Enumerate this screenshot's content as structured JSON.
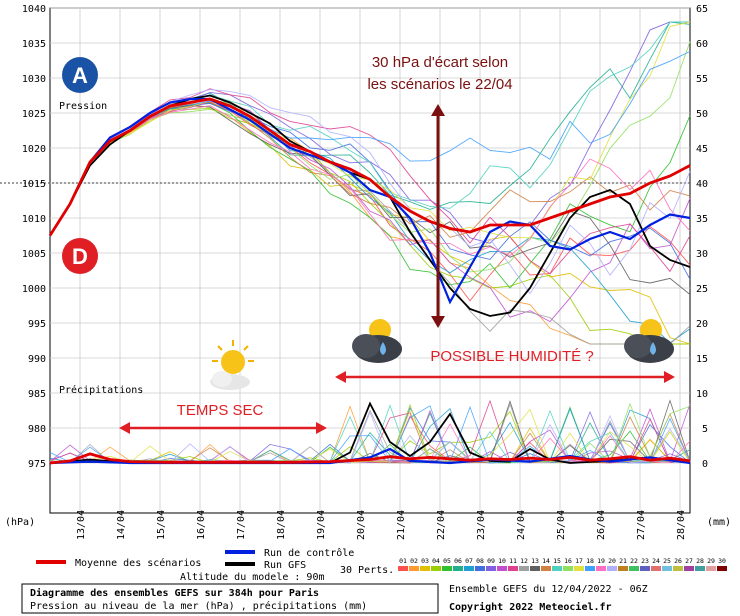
{
  "chart_data": {
    "type": "line",
    "units": {
      "left": "(hPa)",
      "right": "(mm)"
    },
    "left_axis": {
      "ylim": [
        975,
        1040
      ],
      "ticks": [
        975,
        980,
        985,
        990,
        995,
        1000,
        1005,
        1010,
        1015,
        1020,
        1025,
        1030,
        1035,
        1040
      ]
    },
    "right_axis": {
      "ylim": [
        0,
        65
      ],
      "ticks": [
        0,
        5,
        10,
        15,
        20,
        25,
        30,
        35,
        40,
        45,
        50,
        55,
        60,
        65
      ]
    },
    "x_dates": [
      "13/04",
      "14/04",
      "15/04",
      "16/04",
      "17/04",
      "18/04",
      "19/04",
      "20/04",
      "21/04",
      "22/04",
      "23/04",
      "24/04",
      "25/04",
      "26/04",
      "27/04",
      "28/04"
    ],
    "x_range_days": [
      12.25,
      28.25
    ],
    "reference_line_hpa": 1015,
    "labels": {
      "pression": "Pression",
      "precipitations": "Précipitations"
    },
    "series_mean": {
      "name": "Moyenne des scénarios",
      "color": "#e00000",
      "pressure": [
        [
          12.25,
          1007.5
        ],
        [
          12.75,
          1012
        ],
        [
          13.25,
          1018
        ],
        [
          13.75,
          1021
        ],
        [
          14.25,
          1022.5
        ],
        [
          14.75,
          1024.5
        ],
        [
          15.25,
          1026
        ],
        [
          15.75,
          1026.5
        ],
        [
          16.25,
          1027
        ],
        [
          16.75,
          1026
        ],
        [
          17.25,
          1024.5
        ],
        [
          17.75,
          1022.5
        ],
        [
          18.25,
          1020.5
        ],
        [
          18.75,
          1019.5
        ],
        [
          19.25,
          1018
        ],
        [
          19.75,
          1017
        ],
        [
          20.25,
          1015.5
        ],
        [
          20.75,
          1013
        ],
        [
          21.25,
          1011
        ],
        [
          21.75,
          1009.5
        ],
        [
          22.25,
          1008.5
        ],
        [
          22.75,
          1008
        ],
        [
          23.25,
          1009
        ],
        [
          23.75,
          1009
        ],
        [
          24.25,
          1009
        ],
        [
          24.75,
          1010
        ],
        [
          25.25,
          1011
        ],
        [
          25.75,
          1012
        ],
        [
          26.25,
          1013
        ],
        [
          26.75,
          1013.5
        ],
        [
          27.25,
          1015
        ],
        [
          27.75,
          1016
        ],
        [
          28.25,
          1017.5
        ]
      ],
      "precip": [
        [
          12.25,
          0
        ],
        [
          12.75,
          0.3
        ],
        [
          13.25,
          1.3
        ],
        [
          13.75,
          0.5
        ],
        [
          14.25,
          0.2
        ],
        [
          15.25,
          0.1
        ],
        [
          16.25,
          0.1
        ],
        [
          17.25,
          0.1
        ],
        [
          18.25,
          0.1
        ],
        [
          19.25,
          0.2
        ],
        [
          20.25,
          0.5
        ],
        [
          20.75,
          0.9
        ],
        [
          21.25,
          0.6
        ],
        [
          21.75,
          0.8
        ],
        [
          22.25,
          0.6
        ],
        [
          22.75,
          0.4
        ],
        [
          23.25,
          0.6
        ],
        [
          23.75,
          0.5
        ],
        [
          24.25,
          0.7
        ],
        [
          24.75,
          0.5
        ],
        [
          25.25,
          0.8
        ],
        [
          25.75,
          0.4
        ],
        [
          26.25,
          0.6
        ],
        [
          26.75,
          0.9
        ],
        [
          27.25,
          0.4
        ],
        [
          27.75,
          0.7
        ],
        [
          28.25,
          0.3
        ]
      ]
    },
    "series_control": {
      "name": "Run de contrôle",
      "color": "#0020e0",
      "pressure": [
        [
          12.25,
          1007.5
        ],
        [
          12.75,
          1012
        ],
        [
          13.25,
          1018
        ],
        [
          13.75,
          1021.5
        ],
        [
          14.25,
          1023
        ],
        [
          14.75,
          1025
        ],
        [
          15.25,
          1026.5
        ],
        [
          15.75,
          1027
        ],
        [
          16.25,
          1027
        ],
        [
          16.75,
          1025.5
        ],
        [
          17.25,
          1024
        ],
        [
          17.75,
          1022
        ],
        [
          18.25,
          1020
        ],
        [
          18.75,
          1019
        ],
        [
          19.25,
          1018
        ],
        [
          19.75,
          1016.5
        ],
        [
          20.25,
          1014
        ],
        [
          20.75,
          1013
        ],
        [
          21.25,
          1010
        ],
        [
          21.75,
          1005
        ],
        [
          22.25,
          998
        ],
        [
          22.75,
          1003
        ],
        [
          23.25,
          1008
        ],
        [
          23.75,
          1009.5
        ],
        [
          24.25,
          1009
        ],
        [
          24.75,
          1006
        ],
        [
          25.25,
          1005.5
        ],
        [
          25.75,
          1007
        ],
        [
          26.25,
          1008
        ],
        [
          26.75,
          1007
        ],
        [
          27.25,
          1009
        ],
        [
          27.75,
          1010.5
        ],
        [
          28.25,
          1010
        ]
      ],
      "precip": [
        [
          12.25,
          0
        ],
        [
          13.25,
          0.2
        ],
        [
          14.25,
          0
        ],
        [
          19.25,
          0
        ],
        [
          20.25,
          0.8
        ],
        [
          20.75,
          2
        ],
        [
          21.25,
          0.3
        ],
        [
          22.25,
          0
        ],
        [
          23.25,
          0.5
        ],
        [
          24.25,
          0.2
        ],
        [
          25.25,
          1
        ],
        [
          25.75,
          0.5
        ],
        [
          26.25,
          0.2
        ],
        [
          27.25,
          0.8
        ],
        [
          28.25,
          0
        ]
      ]
    },
    "series_gfs": {
      "name": "Run GFS",
      "color": "#000000",
      "pressure": [
        [
          12.25,
          1007.5
        ],
        [
          12.75,
          1012
        ],
        [
          13.25,
          1017.5
        ],
        [
          13.75,
          1020.5
        ],
        [
          14.25,
          1022.5
        ],
        [
          14.75,
          1024.5
        ],
        [
          15.25,
          1026
        ],
        [
          15.75,
          1027
        ],
        [
          16.25,
          1027.5
        ],
        [
          16.75,
          1026.5
        ],
        [
          17.25,
          1025
        ],
        [
          17.75,
          1023.5
        ],
        [
          18.25,
          1021
        ],
        [
          18.75,
          1019.5
        ],
        [
          19.25,
          1018
        ],
        [
          19.75,
          1016.5
        ],
        [
          20.25,
          1015.5
        ],
        [
          20.75,
          1013
        ],
        [
          21.25,
          1008
        ],
        [
          21.75,
          1004
        ],
        [
          22.25,
          1000
        ],
        [
          22.75,
          997
        ],
        [
          23.25,
          996
        ],
        [
          23.75,
          996.5
        ],
        [
          24.25,
          1000
        ],
        [
          24.75,
          1005
        ],
        [
          25.25,
          1010
        ],
        [
          25.75,
          1013
        ],
        [
          26.25,
          1014
        ],
        [
          26.75,
          1012
        ],
        [
          27.25,
          1006
        ],
        [
          27.75,
          1004
        ],
        [
          28.25,
          1003
        ]
      ],
      "precip": [
        [
          12.25,
          0
        ],
        [
          13.25,
          0.5
        ],
        [
          14.25,
          0
        ],
        [
          19.25,
          0
        ],
        [
          19.75,
          1.5
        ],
        [
          20.25,
          8.5
        ],
        [
          20.75,
          3
        ],
        [
          21.25,
          1
        ],
        [
          21.75,
          3
        ],
        [
          22.25,
          7
        ],
        [
          22.75,
          1.5
        ],
        [
          23.25,
          0.3
        ],
        [
          23.75,
          0.2
        ],
        [
          24.25,
          2
        ],
        [
          24.75,
          0.5
        ],
        [
          25.25,
          0
        ],
        [
          26.25,
          0.3
        ],
        [
          27.25,
          0.8
        ],
        [
          28.25,
          0
        ]
      ]
    },
    "perturbation_palette": [
      "#ff5050",
      "#ff9a30",
      "#e0c000",
      "#9ad000",
      "#30c030",
      "#20b090",
      "#20a0d0",
      "#4070e0",
      "#8060e0",
      "#c050d0",
      "#e04090",
      "#a0a0a0",
      "#606060",
      "#d08040",
      "#50d0c0",
      "#90e060",
      "#e0e040",
      "#40a0ff",
      "#ff70c0",
      "#b0b0ff"
    ],
    "annotations": {
      "spread": "30 hPa d'écart selon les scénarios le 22/04",
      "spread_line1": "30 hPa d'écart selon",
      "spread_line2": "les scénarios le 22/04",
      "dry": "TEMPS SEC",
      "humid": "POSSIBLE HUMIDITÉ ?"
    },
    "markers": {
      "high": "A",
      "low": "D"
    },
    "legend": {
      "mean": "Moyenne des scénarios",
      "control": "Run de contrôle",
      "gfs": "Run GFS",
      "perts": "30 Perts.",
      "pert_numbers": [
        "01",
        "02",
        "03",
        "04",
        "05",
        "06",
        "07",
        "08",
        "09",
        "10",
        "11",
        "12",
        "13",
        "14",
        "15",
        "16",
        "17",
        "18",
        "19",
        "20",
        "21",
        "22",
        "23",
        "24",
        "25",
        "26",
        "27",
        "28",
        "29",
        "30"
      ],
      "pert_colors": [
        "#ff5050",
        "#ff9a30",
        "#e0c000",
        "#9ad000",
        "#30c030",
        "#20b090",
        "#20a0d0",
        "#4070e0",
        "#8060e0",
        "#c050d0",
        "#e04090",
        "#a0a0a0",
        "#606060",
        "#d08040",
        "#50d0c0",
        "#90e060",
        "#e0e040",
        "#40a0ff",
        "#ff70c0",
        "#b0b0ff",
        "#c08020",
        "#40c060",
        "#6060c0",
        "#e07070",
        "#70c0e0",
        "#c0c040",
        "#a040a0",
        "#40a0a0",
        "#e0a0a0",
        "#800000"
      ],
      "altitude": "Altitude du modele : 90m"
    },
    "footer": {
      "title": "Diagramme des ensembles GEFS sur 384h pour Paris",
      "subtitle": "Pression au niveau de la mer (hPa) , précipitations (mm)",
      "run": "Ensemble GEFS du 12/04/2022 - 06Z",
      "copyright": "Copyright 2022 Meteociel.fr"
    }
  }
}
